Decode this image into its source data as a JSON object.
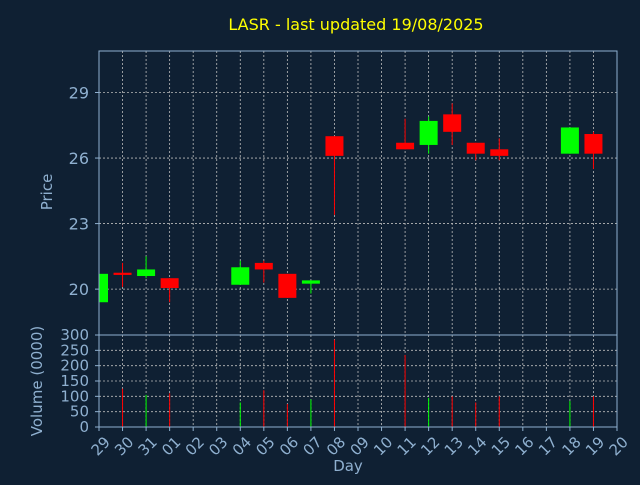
{
  "chart_data": {
    "type": "candlestick",
    "title": "LASR - last updated 19/08/2025",
    "xlabel": "Day",
    "ylabel": "Price",
    "volume_label": "Volume (0000)",
    "ylim": [
      17.9,
      30.9
    ],
    "yticks": [
      20,
      23,
      26,
      29
    ],
    "volume_ylim": [
      0,
      300
    ],
    "volume_yticks": [
      0,
      50,
      100,
      150,
      200,
      250,
      300
    ],
    "x_tick_labels": [
      "29",
      "30",
      "31",
      "01",
      "02",
      "03",
      "04",
      "05",
      "06",
      "07",
      "08",
      "09",
      "10",
      "11",
      "12",
      "13",
      "14",
      "15",
      "16",
      "17",
      "18",
      "19",
      "20"
    ],
    "grid": true,
    "colors": {
      "background": "#0f2033",
      "up": "#00ff00",
      "down": "#ff0000",
      "grid": "#bbbbbb",
      "axis": "#8fb0d0",
      "title": "#ffff00",
      "label": "#8fb0d0"
    },
    "candles": [
      {
        "date": "29/07/2025",
        "x": 0,
        "open": 19.4,
        "high": 20.7,
        "low": 19.4,
        "close": 20.7,
        "volume": 0
      },
      {
        "date": "30/07/2025",
        "x": 1,
        "open": 20.75,
        "high": 21.2,
        "low": 20.1,
        "close": 20.65,
        "volume": 125
      },
      {
        "date": "31/07/2025",
        "x": 2,
        "open": 20.6,
        "high": 21.5,
        "low": 20.5,
        "close": 20.9,
        "volume": 105
      },
      {
        "date": "01/08/2025",
        "x": 3,
        "open": 20.5,
        "high": 20.5,
        "low": 19.4,
        "close": 20.05,
        "volume": 110
      },
      {
        "date": "04/08/2025",
        "x": 6,
        "open": 20.2,
        "high": 21.3,
        "low": 20.2,
        "close": 21.0,
        "volume": 80
      },
      {
        "date": "05/08/2025",
        "x": 7,
        "open": 21.2,
        "high": 21.3,
        "low": 20.3,
        "close": 20.9,
        "volume": 120
      },
      {
        "date": "06/08/2025",
        "x": 8,
        "open": 20.7,
        "high": 20.7,
        "low": 19.6,
        "close": 19.6,
        "volume": 75
      },
      {
        "date": "07/08/2025",
        "x": 9,
        "open": 20.25,
        "high": 20.4,
        "low": 19.8,
        "close": 20.4,
        "volume": 90
      },
      {
        "date": "08/08/2025",
        "x": 10,
        "open": 27.0,
        "high": 27.0,
        "low": 23.4,
        "close": 26.1,
        "volume": 285
      },
      {
        "date": "11/08/2025",
        "x": 13,
        "open": 26.7,
        "high": 27.8,
        "low": 26.4,
        "close": 26.4,
        "volume": 235
      },
      {
        "date": "12/08/2025",
        "x": 14,
        "open": 26.6,
        "high": 27.9,
        "low": 26.2,
        "close": 27.7,
        "volume": 95
      },
      {
        "date": "13/08/2025",
        "x": 15,
        "open": 28.0,
        "high": 28.5,
        "low": 26.6,
        "close": 27.2,
        "volume": 100
      },
      {
        "date": "14/08/2025",
        "x": 16,
        "open": 26.7,
        "high": 26.7,
        "low": 25.9,
        "close": 26.2,
        "volume": 80
      },
      {
        "date": "15/08/2025",
        "x": 17,
        "open": 26.4,
        "high": 26.9,
        "low": 25.9,
        "close": 26.1,
        "volume": 100
      },
      {
        "date": "18/08/2025",
        "x": 20,
        "open": 26.2,
        "high": 27.4,
        "low": 26.2,
        "close": 27.4,
        "volume": 85
      },
      {
        "date": "19/08/2025",
        "x": 21,
        "open": 27.1,
        "high": 27.2,
        "low": 25.5,
        "close": 26.2,
        "volume": 100
      }
    ]
  }
}
